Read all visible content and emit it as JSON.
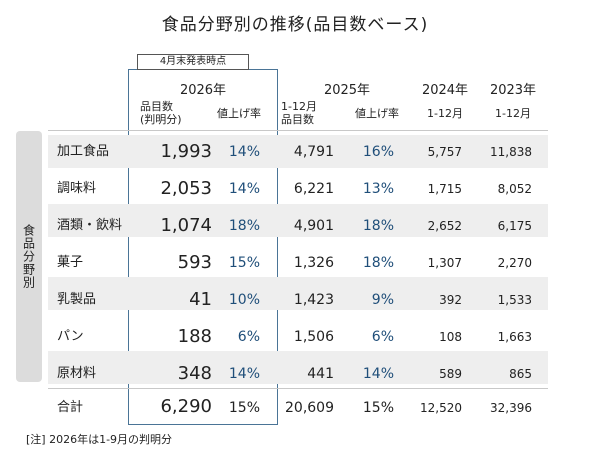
{
  "title": "食品分野別の推移(品目数ベース)",
  "as_of_label": "4月末発表時点",
  "side_label": "食品分野別",
  "headers": {
    "y2026": "2026年",
    "y2026_count": "品目数\n(判明分)",
    "y2026_rate": "値上げ率",
    "y2025": "2025年",
    "y2025_count": "1-12月\n品目数",
    "y2025_rate": "値上げ率",
    "y2024": "2024年",
    "y2024_range": "1-12月",
    "y2023": "2023年",
    "y2023_range": "1-12月"
  },
  "rows": [
    {
      "cat": "加工食品",
      "c2026": "1,993",
      "r2026": "14%",
      "c2025": "4,791",
      "r2025": "16%",
      "c2024": "5,757",
      "c2023": "11,838"
    },
    {
      "cat": "調味料",
      "c2026": "2,053",
      "r2026": "14%",
      "c2025": "6,221",
      "r2025": "13%",
      "c2024": "1,715",
      "c2023": "8,052"
    },
    {
      "cat": "酒類・飲料",
      "c2026": "1,074",
      "r2026": "18%",
      "c2025": "4,901",
      "r2025": "18%",
      "c2024": "2,652",
      "c2023": "6,175"
    },
    {
      "cat": "菓子",
      "c2026": "593",
      "r2026": "15%",
      "c2025": "1,326",
      "r2025": "18%",
      "c2024": "1,307",
      "c2023": "2,270"
    },
    {
      "cat": "乳製品",
      "c2026": "41",
      "r2026": "10%",
      "c2025": "1,423",
      "r2025": "9%",
      "c2024": "392",
      "c2023": "1,533"
    },
    {
      "cat": "パン",
      "c2026": "188",
      "r2026": "6%",
      "c2025": "1,506",
      "r2025": "6%",
      "c2024": "108",
      "c2023": "1,663"
    },
    {
      "cat": "原材料",
      "c2026": "348",
      "r2026": "14%",
      "c2025": "441",
      "r2025": "14%",
      "c2024": "589",
      "c2023": "865"
    }
  ],
  "total": {
    "cat": "合計",
    "c2026": "6,290",
    "r2026": "15%",
    "c2025": "20,609",
    "r2025": "15%",
    "c2024": "12,520",
    "c2023": "32,396"
  },
  "note": "[注] 2026年は1-9月の判明分"
}
